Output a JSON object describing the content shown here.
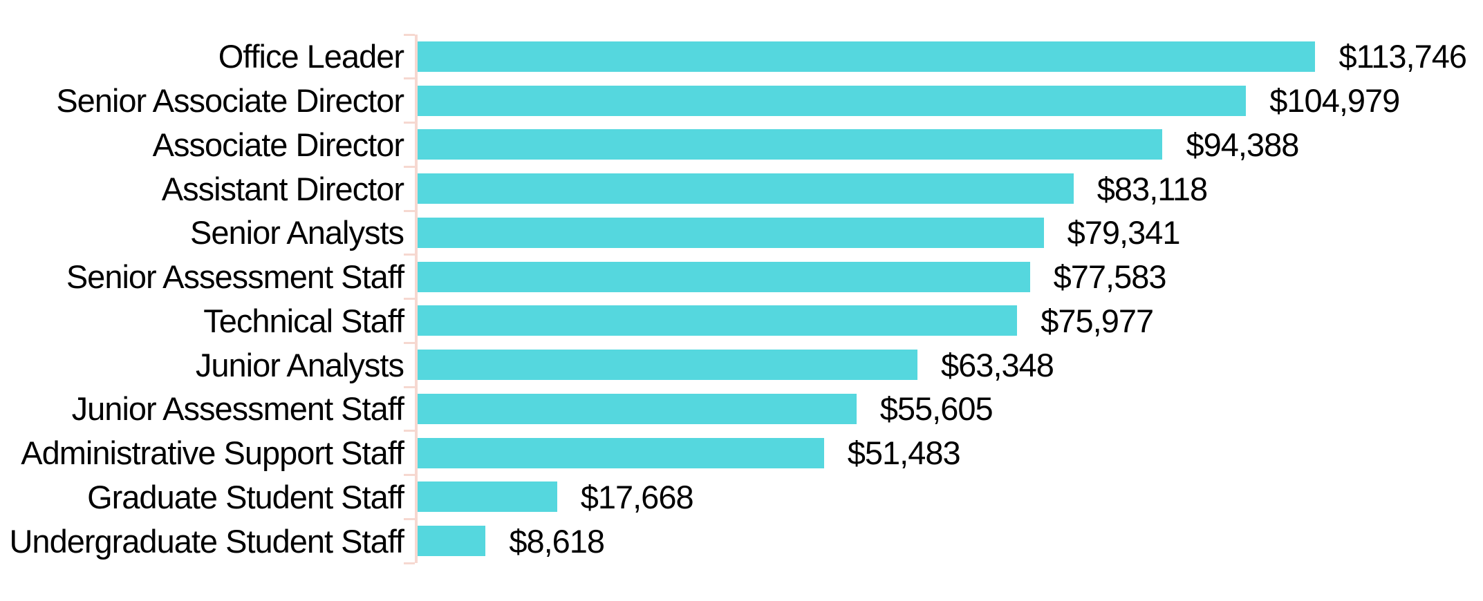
{
  "chart_data": {
    "type": "bar",
    "orientation": "horizontal",
    "title": "",
    "xlabel": "",
    "ylabel": "",
    "categories": [
      "Office Leader",
      "Senior Associate Director",
      "Associate Director",
      "Assistant Director",
      "Senior Analysts",
      "Senior Assessment Staff",
      "Technical Staff",
      "Junior Analysts",
      "Junior Assessment Staff",
      "Administrative Support Staff",
      "Graduate Student Staff",
      "Undergraduate Student Staff"
    ],
    "values": [
      113746,
      104979,
      94388,
      83118,
      79341,
      77583,
      75977,
      63348,
      55605,
      51483,
      17668,
      8618
    ],
    "value_labels": [
      "$113,746",
      "$104,979",
      "$94,388",
      "$83,118",
      "$79,341",
      "$77,583",
      "$75,977",
      "$63,348",
      "$55,605",
      "$51,483",
      "$17,668",
      "$8,618"
    ],
    "xlim": [
      0,
      135000
    ],
    "grid": false,
    "legend": false,
    "bar_color": "#55D7DE",
    "axis_color": "#F6D8D0",
    "label_color": "#000000"
  }
}
